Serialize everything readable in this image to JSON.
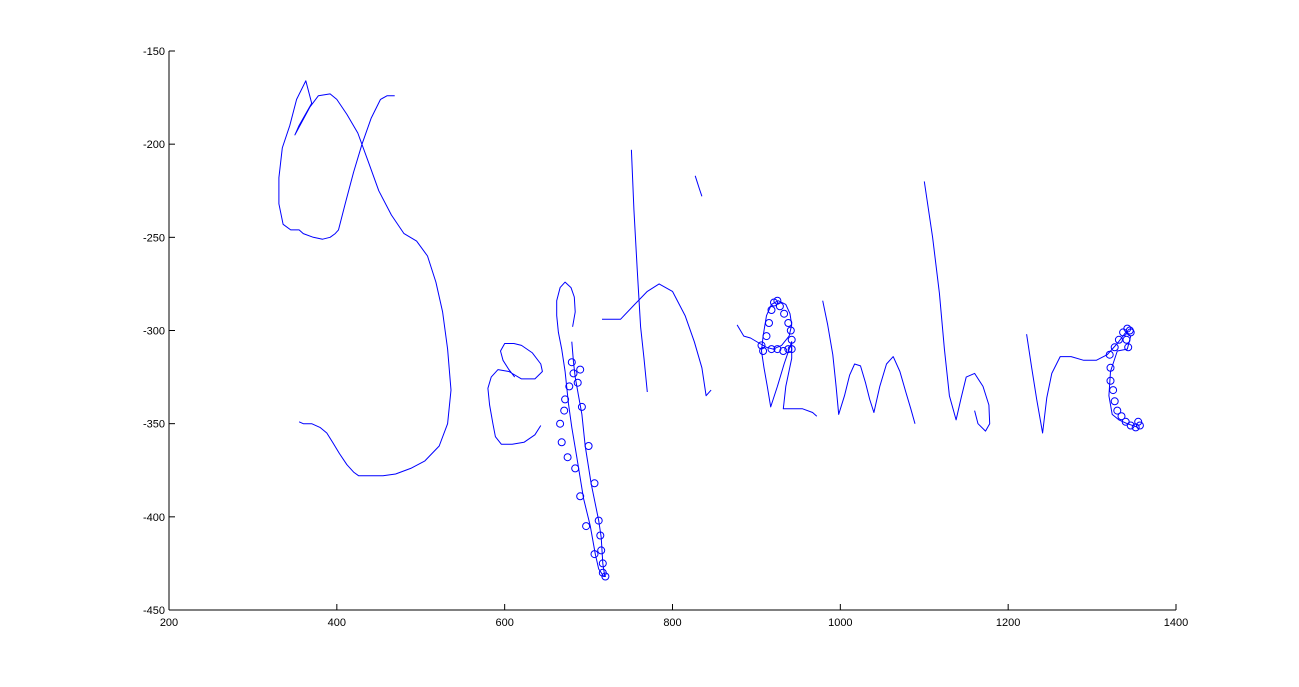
{
  "chart_data": {
    "type": "scatter",
    "title": "",
    "xlabel": "",
    "ylabel": "",
    "xlim": [
      200,
      1400
    ],
    "ylim": [
      -450,
      -150
    ],
    "grid": false,
    "legend": "none",
    "x_ticks": [
      "200",
      "400",
      "600",
      "800",
      "1000",
      "1200",
      "1400"
    ],
    "y_ticks": [
      "-150",
      "-200",
      "-250",
      "-300",
      "-350",
      "-400",
      "-450"
    ],
    "line_color": "#0000ff",
    "series": [
      {
        "points": [
          [
            469,
            -174
          ],
          [
            460,
            -174
          ],
          [
            452,
            -176
          ],
          [
            441,
            -186
          ],
          [
            430,
            -200
          ],
          [
            420,
            -215
          ],
          [
            410,
            -232
          ],
          [
            402,
            -246
          ],
          [
            398,
            -248
          ],
          [
            392,
            -250
          ],
          [
            383,
            -251
          ],
          [
            372,
            -250
          ],
          [
            360,
            -248
          ],
          [
            355,
            -246
          ],
          [
            345,
            -246
          ],
          [
            336,
            -243
          ],
          [
            331,
            -232
          ],
          [
            331,
            -218
          ],
          [
            335,
            -202
          ],
          [
            344,
            -190
          ],
          [
            352,
            -176
          ],
          [
            363,
            -166
          ],
          [
            370,
            -178
          ],
          [
            355,
            -190
          ],
          [
            350,
            -195
          ],
          [
            368,
            -180
          ],
          [
            378,
            -174
          ],
          [
            392,
            -173
          ],
          [
            400,
            -176
          ],
          [
            412,
            -184
          ],
          [
            425,
            -194
          ],
          [
            438,
            -210
          ],
          [
            450,
            -225
          ],
          [
            465,
            -238
          ],
          [
            480,
            -248
          ],
          [
            495,
            -252
          ],
          [
            508,
            -260
          ],
          [
            518,
            -274
          ],
          [
            526,
            -290
          ],
          [
            532,
            -310
          ],
          [
            536,
            -332
          ],
          [
            532,
            -350
          ],
          [
            522,
            -362
          ],
          [
            505,
            -370
          ],
          [
            488,
            -374
          ],
          [
            470,
            -377
          ],
          [
            455,
            -378
          ],
          [
            445,
            -378
          ],
          [
            436,
            -378
          ],
          [
            426,
            -378
          ],
          [
            420,
            -376
          ],
          [
            412,
            -372
          ],
          [
            403,
            -366
          ],
          [
            395,
            -360
          ],
          [
            388,
            -355
          ],
          [
            380,
            -352
          ],
          [
            370,
            -350
          ],
          [
            360,
            -350
          ],
          [
            355,
            -349
          ]
        ]
      },
      {
        "points": [
          [
            612,
            -325
          ],
          [
            605,
            -321
          ],
          [
            598,
            -316
          ],
          [
            595,
            -311
          ],
          [
            600,
            -307
          ],
          [
            611,
            -307
          ],
          [
            620,
            -308
          ],
          [
            633,
            -312
          ],
          [
            643,
            -318
          ],
          [
            645,
            -322
          ],
          [
            636,
            -326
          ],
          [
            620,
            -326
          ],
          [
            605,
            -322
          ],
          [
            592,
            -321
          ],
          [
            584,
            -325
          ],
          [
            580,
            -331
          ],
          [
            582,
            -340
          ],
          [
            586,
            -350
          ],
          [
            589,
            -357
          ],
          [
            596,
            -361
          ],
          [
            609,
            -361
          ],
          [
            623,
            -360
          ],
          [
            636,
            -356
          ],
          [
            643,
            -351
          ]
        ]
      },
      {
        "points": [
          [
            680,
            -306
          ],
          [
            682,
            -317
          ],
          [
            684,
            -325
          ],
          [
            688,
            -335
          ],
          [
            692,
            -345
          ],
          [
            696,
            -362
          ],
          [
            703,
            -382
          ],
          [
            712,
            -402
          ],
          [
            715,
            -411
          ],
          [
            716,
            -418
          ],
          [
            717,
            -425
          ],
          [
            719,
            -431
          ],
          [
            720,
            -432
          ],
          [
            718,
            -432
          ],
          [
            715,
            -430
          ],
          [
            712,
            -428
          ],
          [
            708,
            -420
          ],
          [
            702,
            -405
          ],
          [
            694,
            -390
          ],
          [
            686,
            -368
          ],
          [
            680,
            -352
          ],
          [
            676,
            -339
          ],
          [
            672,
            -322
          ],
          [
            668,
            -310
          ],
          [
            664,
            -301
          ],
          [
            662,
            -292
          ],
          [
            662,
            -284
          ],
          [
            666,
            -277
          ],
          [
            672,
            -274
          ],
          [
            679,
            -277
          ],
          [
            683,
            -282
          ],
          [
            684,
            -290
          ],
          [
            681,
            -298
          ]
        ]
      },
      {
        "points": [
          [
            751,
            -203
          ],
          [
            754,
            -235
          ],
          [
            758,
            -268
          ],
          [
            762,
            -298
          ],
          [
            766,
            -315
          ],
          [
            770,
            -333
          ]
        ]
      },
      {
        "points": [
          [
            827,
            -217
          ],
          [
            832,
            -224
          ],
          [
            835,
            -228
          ]
        ]
      },
      {
        "points": [
          [
            716,
            -294
          ],
          [
            724,
            -294
          ],
          [
            738,
            -294
          ],
          [
            755,
            -286
          ],
          [
            770,
            -279
          ],
          [
            784,
            -275
          ],
          [
            800,
            -279
          ],
          [
            815,
            -292
          ],
          [
            826,
            -306
          ],
          [
            835,
            -320
          ],
          [
            840,
            -335
          ],
          [
            846,
            -332
          ]
        ]
      },
      {
        "points": [
          [
            877,
            -297
          ],
          [
            885,
            -303
          ],
          [
            893,
            -304
          ],
          [
            904,
            -307
          ],
          [
            912,
            -309
          ],
          [
            920,
            -310
          ],
          [
            930,
            -308
          ],
          [
            939,
            -303
          ],
          [
            942,
            -297
          ],
          [
            940,
            -291
          ],
          [
            935,
            -286
          ],
          [
            926,
            -284
          ],
          [
            918,
            -286
          ],
          [
            912,
            -292
          ],
          [
            908,
            -303
          ],
          [
            906,
            -311
          ],
          [
            909,
            -320
          ],
          [
            913,
            -330
          ],
          [
            917,
            -341
          ],
          [
            925,
            -330
          ],
          [
            933,
            -318
          ],
          [
            942,
            -306
          ],
          [
            942,
            -315
          ],
          [
            935,
            -330
          ],
          [
            932,
            -342
          ],
          [
            955,
            -342
          ],
          [
            967,
            -344
          ],
          [
            972,
            -346
          ]
        ]
      },
      {
        "points": [
          [
            979,
            -284
          ],
          [
            985,
            -297
          ],
          [
            991,
            -313
          ],
          [
            995,
            -330
          ],
          [
            998,
            -345
          ],
          [
            1005,
            -335
          ],
          [
            1011,
            -324
          ],
          [
            1017,
            -318
          ],
          [
            1024,
            -319
          ],
          [
            1030,
            -328
          ],
          [
            1035,
            -337
          ],
          [
            1040,
            -344
          ],
          [
            1047,
            -330
          ],
          [
            1055,
            -318
          ],
          [
            1063,
            -314
          ],
          [
            1071,
            -322
          ],
          [
            1078,
            -333
          ],
          [
            1084,
            -342
          ],
          [
            1089,
            -350
          ]
        ]
      },
      {
        "points": [
          [
            1100,
            -220
          ],
          [
            1110,
            -250
          ],
          [
            1118,
            -280
          ],
          [
            1124,
            -310
          ],
          [
            1130,
            -335
          ],
          [
            1138,
            -348
          ],
          [
            1144,
            -336
          ],
          [
            1150,
            -325
          ],
          [
            1160,
            -323
          ],
          [
            1170,
            -330
          ],
          [
            1177,
            -340
          ],
          [
            1178,
            -350
          ],
          [
            1173,
            -354
          ],
          [
            1164,
            -350
          ],
          [
            1160,
            -343
          ]
        ]
      },
      {
        "points": [
          [
            1222,
            -302
          ],
          [
            1228,
            -320
          ],
          [
            1234,
            -337
          ],
          [
            1241,
            -355
          ],
          [
            1246,
            -336
          ],
          [
            1252,
            -323
          ],
          [
            1262,
            -314
          ],
          [
            1275,
            -314
          ],
          [
            1290,
            -316
          ],
          [
            1305,
            -316
          ],
          [
            1318,
            -313
          ],
          [
            1330,
            -307
          ],
          [
            1340,
            -301
          ],
          [
            1346,
            -303
          ],
          [
            1342,
            -310
          ],
          [
            1330,
            -311
          ],
          [
            1322,
            -322
          ],
          [
            1320,
            -335
          ],
          [
            1324,
            -345
          ],
          [
            1332,
            -348
          ],
          [
            1342,
            -350
          ],
          [
            1355,
            -352
          ]
        ]
      }
    ],
    "markers": [
      [
        680,
        -317
      ],
      [
        672,
        -337
      ],
      [
        666,
        -350
      ],
      [
        668,
        -360
      ],
      [
        675,
        -368
      ],
      [
        684,
        -374
      ],
      [
        690,
        -389
      ],
      [
        697,
        -405
      ],
      [
        707,
        -420
      ],
      [
        717,
        -430
      ],
      [
        720,
        -432
      ],
      [
        717,
        -425
      ],
      [
        715,
        -418
      ],
      [
        714,
        -410
      ],
      [
        712,
        -402
      ],
      [
        707,
        -382
      ],
      [
        700,
        -362
      ],
      [
        692,
        -341
      ],
      [
        687,
        -328
      ],
      [
        682,
        -323
      ],
      [
        690,
        -321
      ],
      [
        677,
        -330
      ],
      [
        671,
        -343
      ],
      [
        906,
        -308
      ],
      [
        908,
        -311
      ],
      [
        912,
        -303
      ],
      [
        915,
        -296
      ],
      [
        918,
        -289
      ],
      [
        921,
        -285
      ],
      [
        925,
        -284
      ],
      [
        928,
        -287
      ],
      [
        933,
        -291
      ],
      [
        938,
        -296
      ],
      [
        941,
        -300
      ],
      [
        942,
        -305
      ],
      [
        942,
        -310
      ],
      [
        938,
        -310
      ],
      [
        932,
        -311
      ],
      [
        925,
        -310
      ],
      [
        918,
        -310
      ],
      [
        1321,
        -313
      ],
      [
        1322,
        -320
      ],
      [
        1322,
        -327
      ],
      [
        1325,
        -332
      ],
      [
        1327,
        -338
      ],
      [
        1330,
        -343
      ],
      [
        1335,
        -346
      ],
      [
        1340,
        -349
      ],
      [
        1346,
        -351
      ],
      [
        1352,
        -352
      ],
      [
        1357,
        -351
      ],
      [
        1355,
        -349
      ],
      [
        1346,
        -301
      ],
      [
        1342,
        -299
      ],
      [
        1337,
        -301
      ],
      [
        1332,
        -305
      ],
      [
        1327,
        -309
      ],
      [
        1343,
        -309
      ],
      [
        1341,
        -305
      ],
      [
        1345,
        -300
      ]
    ]
  }
}
